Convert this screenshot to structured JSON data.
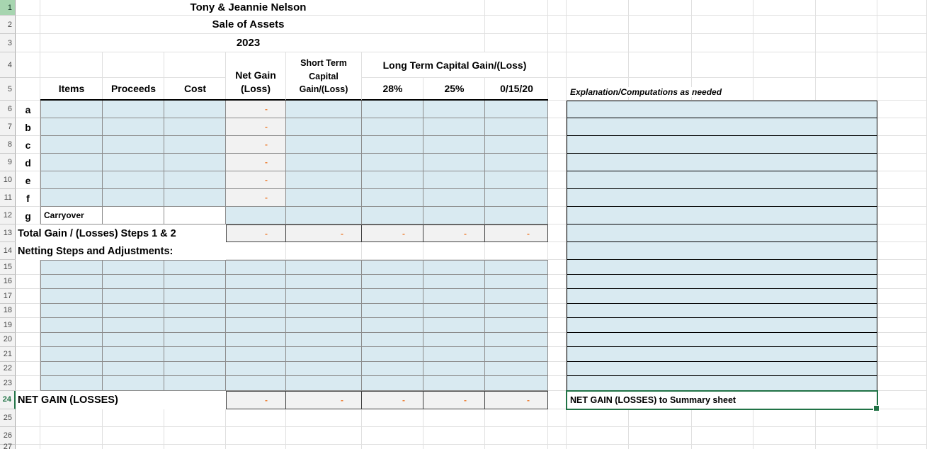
{
  "titles": {
    "name": "Tony & Jeannie Nelson",
    "subtitle": "Sale of Assets",
    "year": "2023"
  },
  "columns": {
    "items": "Items",
    "proceeds": "Proceeds",
    "cost": "Cost",
    "net_gain_lines": [
      "Net Gain",
      "(Loss)"
    ],
    "short_term_lines": [
      "Short Term",
      "Capital",
      "Gain/(Loss)"
    ],
    "long_term": "Long Term Capital Gain/(Loss)",
    "rate_28": "28%",
    "rate_25": "25%",
    "rate_0_15_20": "0/15/20",
    "explanation": "Explanation/Computations as needed"
  },
  "body": {
    "item_row_labels": [
      "a",
      "b",
      "c",
      "d",
      "e",
      "f",
      "g"
    ],
    "carryover": "Carryover",
    "total_label": "Total Gain / (Losses) Steps 1 & 2",
    "netting_label": "Netting Steps and Adjustments:",
    "net_gain_label": "NET GAIN (LOSSES)",
    "summary_note": "NET GAIN (LOSSES) to Summary sheet",
    "zero_display": "-"
  },
  "row_numbers": [
    "1",
    "2",
    "3",
    "4",
    "5",
    "6",
    "7",
    "8",
    "9",
    "10",
    "11",
    "12",
    "13",
    "14",
    "15",
    "16",
    "17",
    "18",
    "19",
    "20",
    "21",
    "22",
    "23",
    "24",
    "25",
    "26",
    "27"
  ],
  "colors": {
    "cell_fill_blue": "#D9EAF1",
    "cell_fill_gray": "#F2F2F2",
    "zero_dash_orange": "#ED7D31",
    "selection_green": "#217346",
    "row1_header_green": "#A7D5B0",
    "grid_border_gray": "#8C8C8C"
  }
}
